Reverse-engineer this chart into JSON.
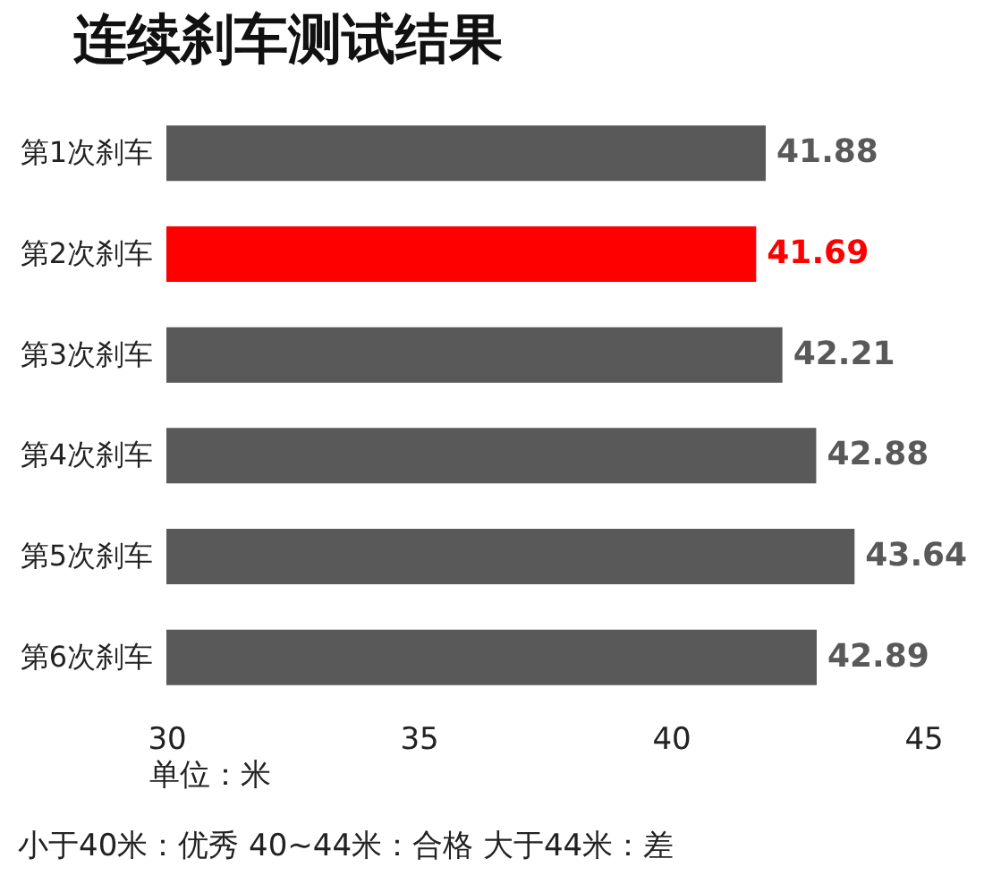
{
  "chart_data": {
    "type": "bar",
    "orientation": "horizontal",
    "title": "连续刹车测试结果",
    "xlabel": "单位：米",
    "categories": [
      "第1次刹车",
      "第2次刹车",
      "第3次刹车",
      "第4次刹车",
      "第5次刹车",
      "第6次刹车"
    ],
    "values": [
      41.88,
      41.69,
      42.21,
      42.88,
      43.64,
      42.89
    ],
    "colors": [
      "#595959",
      "#ff0000",
      "#595959",
      "#595959",
      "#595959",
      "#595959"
    ],
    "xlim": [
      30,
      45
    ],
    "xticks": [
      30,
      35,
      40,
      45
    ],
    "data_labels": true,
    "grid": false,
    "annotations": [
      "小于40米：优秀   40~44米：合格   大于44米：差"
    ]
  }
}
